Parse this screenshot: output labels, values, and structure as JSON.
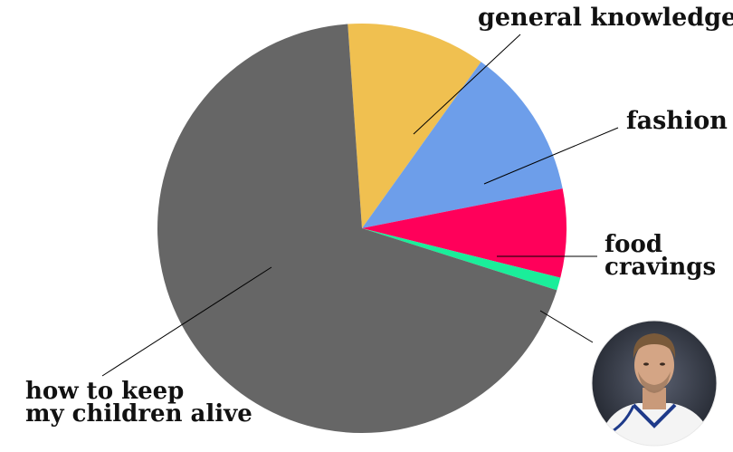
{
  "chart_data": {
    "type": "pie",
    "title": "",
    "slices": [
      {
        "label_lines": [
          "general knowledge"
        ],
        "value": 11,
        "color": "#f0c050"
      },
      {
        "label_lines": [
          "fashion"
        ],
        "value": 12,
        "color": "#6d9eea"
      },
      {
        "label_lines": [
          "food",
          "cravings"
        ],
        "value": 7,
        "color": "#ff005a"
      },
      {
        "label_lines": [],
        "value": 1,
        "color": "#1aee9a",
        "image": "photo-of-man"
      },
      {
        "label_lines": [
          "how to keep",
          "my children alive"
        ],
        "value": 69,
        "color": "#666666"
      }
    ]
  }
}
